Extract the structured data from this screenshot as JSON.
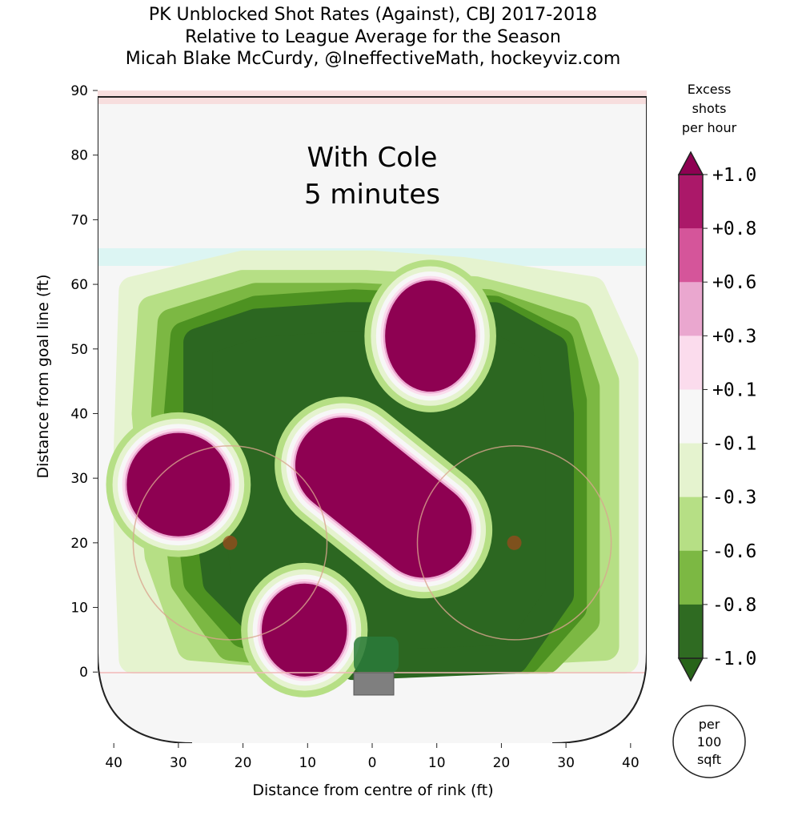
{
  "chart_data": {
    "type": "heatmap",
    "title": [
      "PK Unblocked Shot Rates (Against), CBJ 2017-2018",
      "Relative to League Average for the Season",
      "Micah Blake McCurdy, @IneffectiveMath, hockeyviz.com"
    ],
    "annotation": [
      "With Cole",
      "5 minutes"
    ],
    "xlabel": "Distance from centre of rink (ft)",
    "ylabel": "Distance from goal line (ft)",
    "xlim": [
      -42.5,
      42.5
    ],
    "ylim": [
      -11,
      90
    ],
    "xticks": [
      -40,
      -30,
      -20,
      -10,
      0,
      10,
      20,
      30,
      40
    ],
    "xtick_labels": [
      "40",
      "30",
      "20",
      "10",
      "0",
      "10",
      "20",
      "30",
      "40"
    ],
    "yticks": [
      0,
      10,
      20,
      30,
      40,
      50,
      60,
      70,
      80,
      90
    ],
    "ytick_labels": [
      "0",
      "10",
      "20",
      "30",
      "40",
      "50",
      "60",
      "70",
      "80",
      "90"
    ],
    "colorbar": {
      "title": [
        "Excess",
        "shots",
        "per hour"
      ],
      "tick_labels": [
        "+1.0",
        "+0.8",
        "+0.6",
        "+0.3",
        "+0.1",
        "-0.1",
        "-0.3",
        "-0.6",
        "-0.8",
        "-1.0"
      ],
      "segment_colors": [
        "#ab1869",
        "#d5559a",
        "#eaa7cf",
        "#fbdced",
        "#f7f7f7",
        "#e5f3cf",
        "#b6df85",
        "#7cb843",
        "#2f6b22"
      ],
      "over_color": "#8e0152",
      "under_color": "#276419",
      "unit_note": [
        "per",
        "100",
        "sqft"
      ]
    },
    "green_regions": [
      {
        "level": -0.2,
        "color": "#e5f3cf",
        "points": [
          [
            -37,
            59
          ],
          [
            -20,
            63
          ],
          [
            0,
            63
          ],
          [
            14,
            62
          ],
          [
            34,
            59
          ],
          [
            39,
            48
          ],
          [
            39,
            2
          ],
          [
            -37,
            2
          ],
          [
            -38,
            28
          ]
        ]
      },
      {
        "level": -0.45,
        "color": "#b6df85",
        "points": [
          [
            -34,
            56
          ],
          [
            -20,
            60
          ],
          [
            -1,
            60
          ],
          [
            16,
            59
          ],
          [
            32,
            55
          ],
          [
            36,
            45
          ],
          [
            36,
            4
          ],
          [
            -4,
            2
          ],
          [
            -28,
            4
          ],
          [
            -33,
            18
          ],
          [
            -35,
            40
          ]
        ]
      },
      {
        "level": -0.7,
        "color": "#7cb843",
        "points": [
          [
            -31,
            54
          ],
          [
            -18,
            58
          ],
          [
            -2,
            58
          ],
          [
            18,
            57
          ],
          [
            30,
            53
          ],
          [
            33,
            44
          ],
          [
            33,
            8
          ],
          [
            27,
            2
          ],
          [
            -3,
            2
          ],
          [
            -22,
            4
          ],
          [
            -29,
            14
          ],
          [
            -32,
            40
          ]
        ]
      },
      {
        "level": -0.9,
        "color": "#4d9221",
        "points": [
          [
            -29,
            52
          ],
          [
            -18,
            56
          ],
          [
            -3,
            57
          ],
          [
            19,
            56
          ],
          [
            29,
            51
          ],
          [
            31,
            42
          ],
          [
            31,
            10
          ],
          [
            24,
            2
          ],
          [
            -3,
            2
          ],
          [
            -20,
            6
          ],
          [
            -27,
            14
          ],
          [
            -30,
            40
          ]
        ]
      },
      {
        "level": -1.0,
        "color": "#2c6721",
        "points": [
          [
            -27,
            51
          ],
          [
            -18,
            54
          ],
          [
            -4,
            55
          ],
          [
            19,
            55
          ],
          [
            28,
            50
          ],
          [
            29,
            40
          ],
          [
            29,
            12
          ],
          [
            22,
            2
          ],
          [
            -3,
            1
          ],
          [
            -18,
            8
          ],
          [
            -24,
            14
          ],
          [
            -27,
            38
          ]
        ]
      }
    ],
    "hotspots": [
      {
        "name": "left-faceoff-high",
        "x": -30,
        "y": 29,
        "rx": 8,
        "ry": 8,
        "level": 1.0
      },
      {
        "name": "high-slot-right",
        "x": 9,
        "y": 52,
        "rx": 7,
        "ry": 8.6,
        "level": 1.0
      },
      {
        "name": "low-slot-left",
        "x": -10.5,
        "y": 6.5,
        "rx": 6.6,
        "ry": 7.2,
        "level": 1.0
      },
      {
        "name": "slot-diagonal",
        "x1": -4.5,
        "y1": 32,
        "x2": 8,
        "y2": 22,
        "r": 7.4,
        "level": 1.0
      }
    ],
    "faceoff_circles": [
      {
        "x": -22,
        "y": 20,
        "r": 15
      },
      {
        "x": 22,
        "y": 20,
        "r": 15
      }
    ]
  }
}
